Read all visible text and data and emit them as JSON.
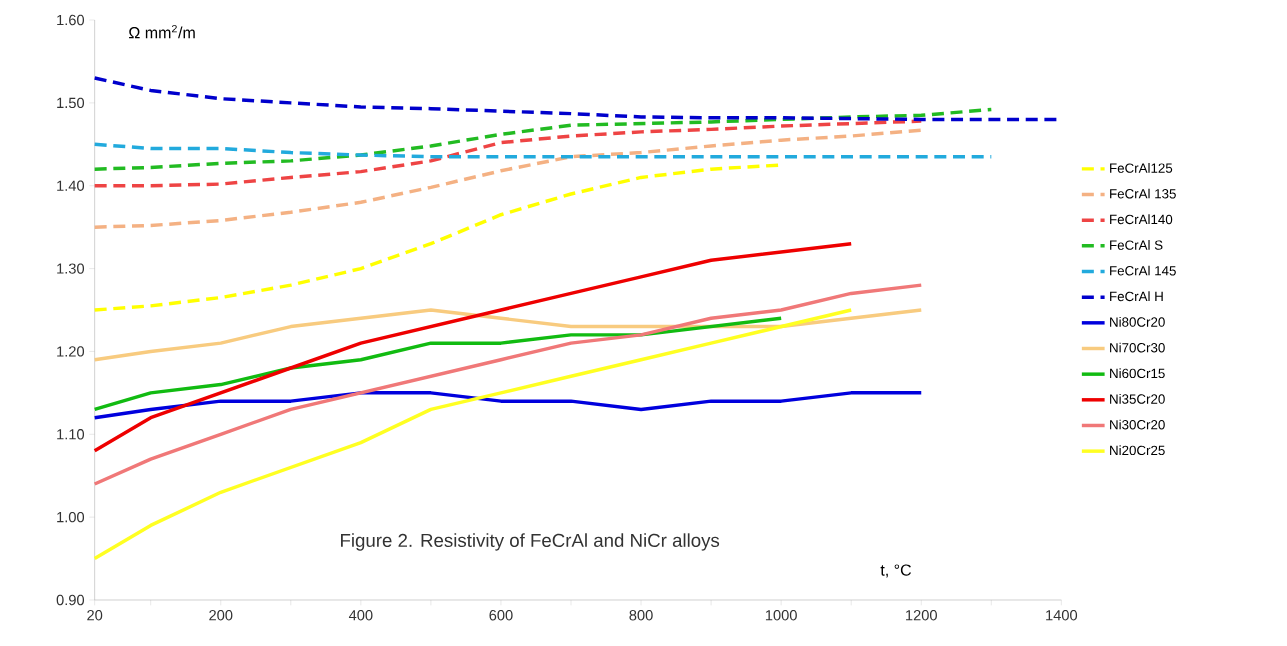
{
  "chart_data": {
    "type": "line",
    "ylabel": "Ω mm$^{2}$/m",
    "xlabel": "t, °C",
    "annotations": [
      "Figure 2.  Resistivity of FeCrAl and NiCr alloys"
    ],
    "x": [
      20,
      100,
      200,
      300,
      400,
      500,
      600,
      700,
      800,
      900,
      1000,
      1100,
      1200,
      1300,
      1400
    ],
    "xlim": [
      20,
      1400
    ],
    "xticks": [
      20,
      {
        "value": 100,
        "label": null
      },
      200,
      {
        "value": 300,
        "label": null
      },
      400,
      {
        "value": 500,
        "label": null
      },
      600,
      {
        "value": 700,
        "label": null
      },
      800,
      {
        "value": 900,
        "label": null
      },
      1000,
      {
        "value": 1100,
        "label": null
      },
      1200,
      {
        "value": 1300,
        "label": null
      },
      1400
    ],
    "ylim": [
      0.9,
      1.6
    ],
    "yticks": [
      {
        "value": 0.9,
        "label": "0.90"
      },
      {
        "value": 1.0,
        "label": "1.00"
      },
      {
        "value": 1.1,
        "label": "1.10"
      },
      {
        "value": 1.2,
        "label": "1.20"
      },
      {
        "value": 1.3,
        "label": "1.30"
      },
      {
        "value": 1.4,
        "label": "1.40"
      },
      {
        "value": 1.5,
        "label": "1.50"
      },
      {
        "value": 1.6,
        "label": "1.60"
      }
    ],
    "grid": false,
    "legend": "right",
    "marker": "none",
    "series": [
      {
        "name": "FeCrAl125",
        "color": "#ffff00",
        "line_style": "dashed",
        "values": [
          1.25,
          1.255,
          1.265,
          1.28,
          1.3,
          1.33,
          1.365,
          1.39,
          1.41,
          1.42,
          1.425,
          null,
          null,
          null,
          null
        ]
      },
      {
        "name": "FeCrAl 135",
        "color": "#f4b183",
        "line_style": "dashed",
        "values": [
          1.35,
          1.352,
          1.358,
          1.368,
          1.38,
          1.398,
          1.418,
          1.435,
          1.44,
          1.448,
          1.455,
          1.46,
          1.467,
          null,
          null
        ]
      },
      {
        "name": "FeCrAl140",
        "color": "#ee4444",
        "line_style": "dashed",
        "values": [
          1.4,
          1.4,
          1.402,
          1.41,
          1.417,
          1.43,
          1.452,
          1.46,
          1.465,
          1.468,
          1.472,
          1.475,
          1.478,
          null,
          null
        ]
      },
      {
        "name": "FeCrAl S",
        "color": "#22bb22",
        "line_style": "dashed",
        "values": [
          1.42,
          1.422,
          1.427,
          1.43,
          1.437,
          1.448,
          1.462,
          1.473,
          1.475,
          1.477,
          1.48,
          1.483,
          1.485,
          1.492,
          null
        ]
      },
      {
        "name": "FeCrAl 145",
        "color": "#22aadd",
        "line_style": "dashed",
        "values": [
          1.45,
          1.445,
          1.445,
          1.44,
          1.437,
          1.435,
          1.435,
          1.435,
          1.435,
          1.435,
          1.435,
          1.435,
          1.435,
          1.435,
          null
        ]
      },
      {
        "name": "FeCrAl H",
        "color": "#0000cc",
        "line_style": "dashed",
        "values": [
          1.53,
          1.515,
          1.505,
          1.5,
          1.495,
          1.493,
          1.49,
          1.487,
          1.483,
          1.482,
          1.482,
          1.481,
          1.48,
          1.48,
          1.48
        ]
      },
      {
        "name": "Ni80Cr20",
        "color": "#0000dd",
        "line_style": "solid",
        "values": [
          1.12,
          1.13,
          1.14,
          1.14,
          1.15,
          1.15,
          1.14,
          1.14,
          1.13,
          1.14,
          1.14,
          1.15,
          1.15,
          null,
          null
        ]
      },
      {
        "name": "Ni70Cr30",
        "color": "#f8cb7f",
        "line_style": "solid",
        "values": [
          1.19,
          1.2,
          1.21,
          1.23,
          1.24,
          1.25,
          1.24,
          1.23,
          1.23,
          1.23,
          1.23,
          1.24,
          1.25,
          null,
          null
        ]
      },
      {
        "name": "Ni60Cr15",
        "color": "#11bb11",
        "line_style": "solid",
        "values": [
          1.13,
          1.15,
          1.16,
          1.18,
          1.19,
          1.21,
          1.21,
          1.22,
          1.22,
          1.23,
          1.24,
          null,
          null,
          null,
          null
        ]
      },
      {
        "name": "Ni35Cr20",
        "color": "#ee0000",
        "line_style": "solid",
        "values": [
          1.08,
          1.12,
          1.15,
          1.18,
          1.21,
          1.23,
          1.25,
          1.27,
          1.29,
          1.31,
          1.32,
          1.33,
          null,
          null,
          null
        ]
      },
      {
        "name": "Ni30Cr20",
        "color": "#f07878",
        "line_style": "solid",
        "values": [
          1.04,
          1.07,
          1.1,
          1.13,
          1.15,
          1.17,
          1.19,
          1.21,
          1.22,
          1.24,
          1.25,
          1.27,
          1.28,
          null,
          null
        ]
      },
      {
        "name": "Ni20Cr25",
        "color": "#ffff22",
        "line_style": "solid",
        "values": [
          0.95,
          0.99,
          1.03,
          1.06,
          1.09,
          1.13,
          1.15,
          1.17,
          1.19,
          1.21,
          1.23,
          1.25,
          null,
          null,
          null
        ]
      }
    ]
  }
}
